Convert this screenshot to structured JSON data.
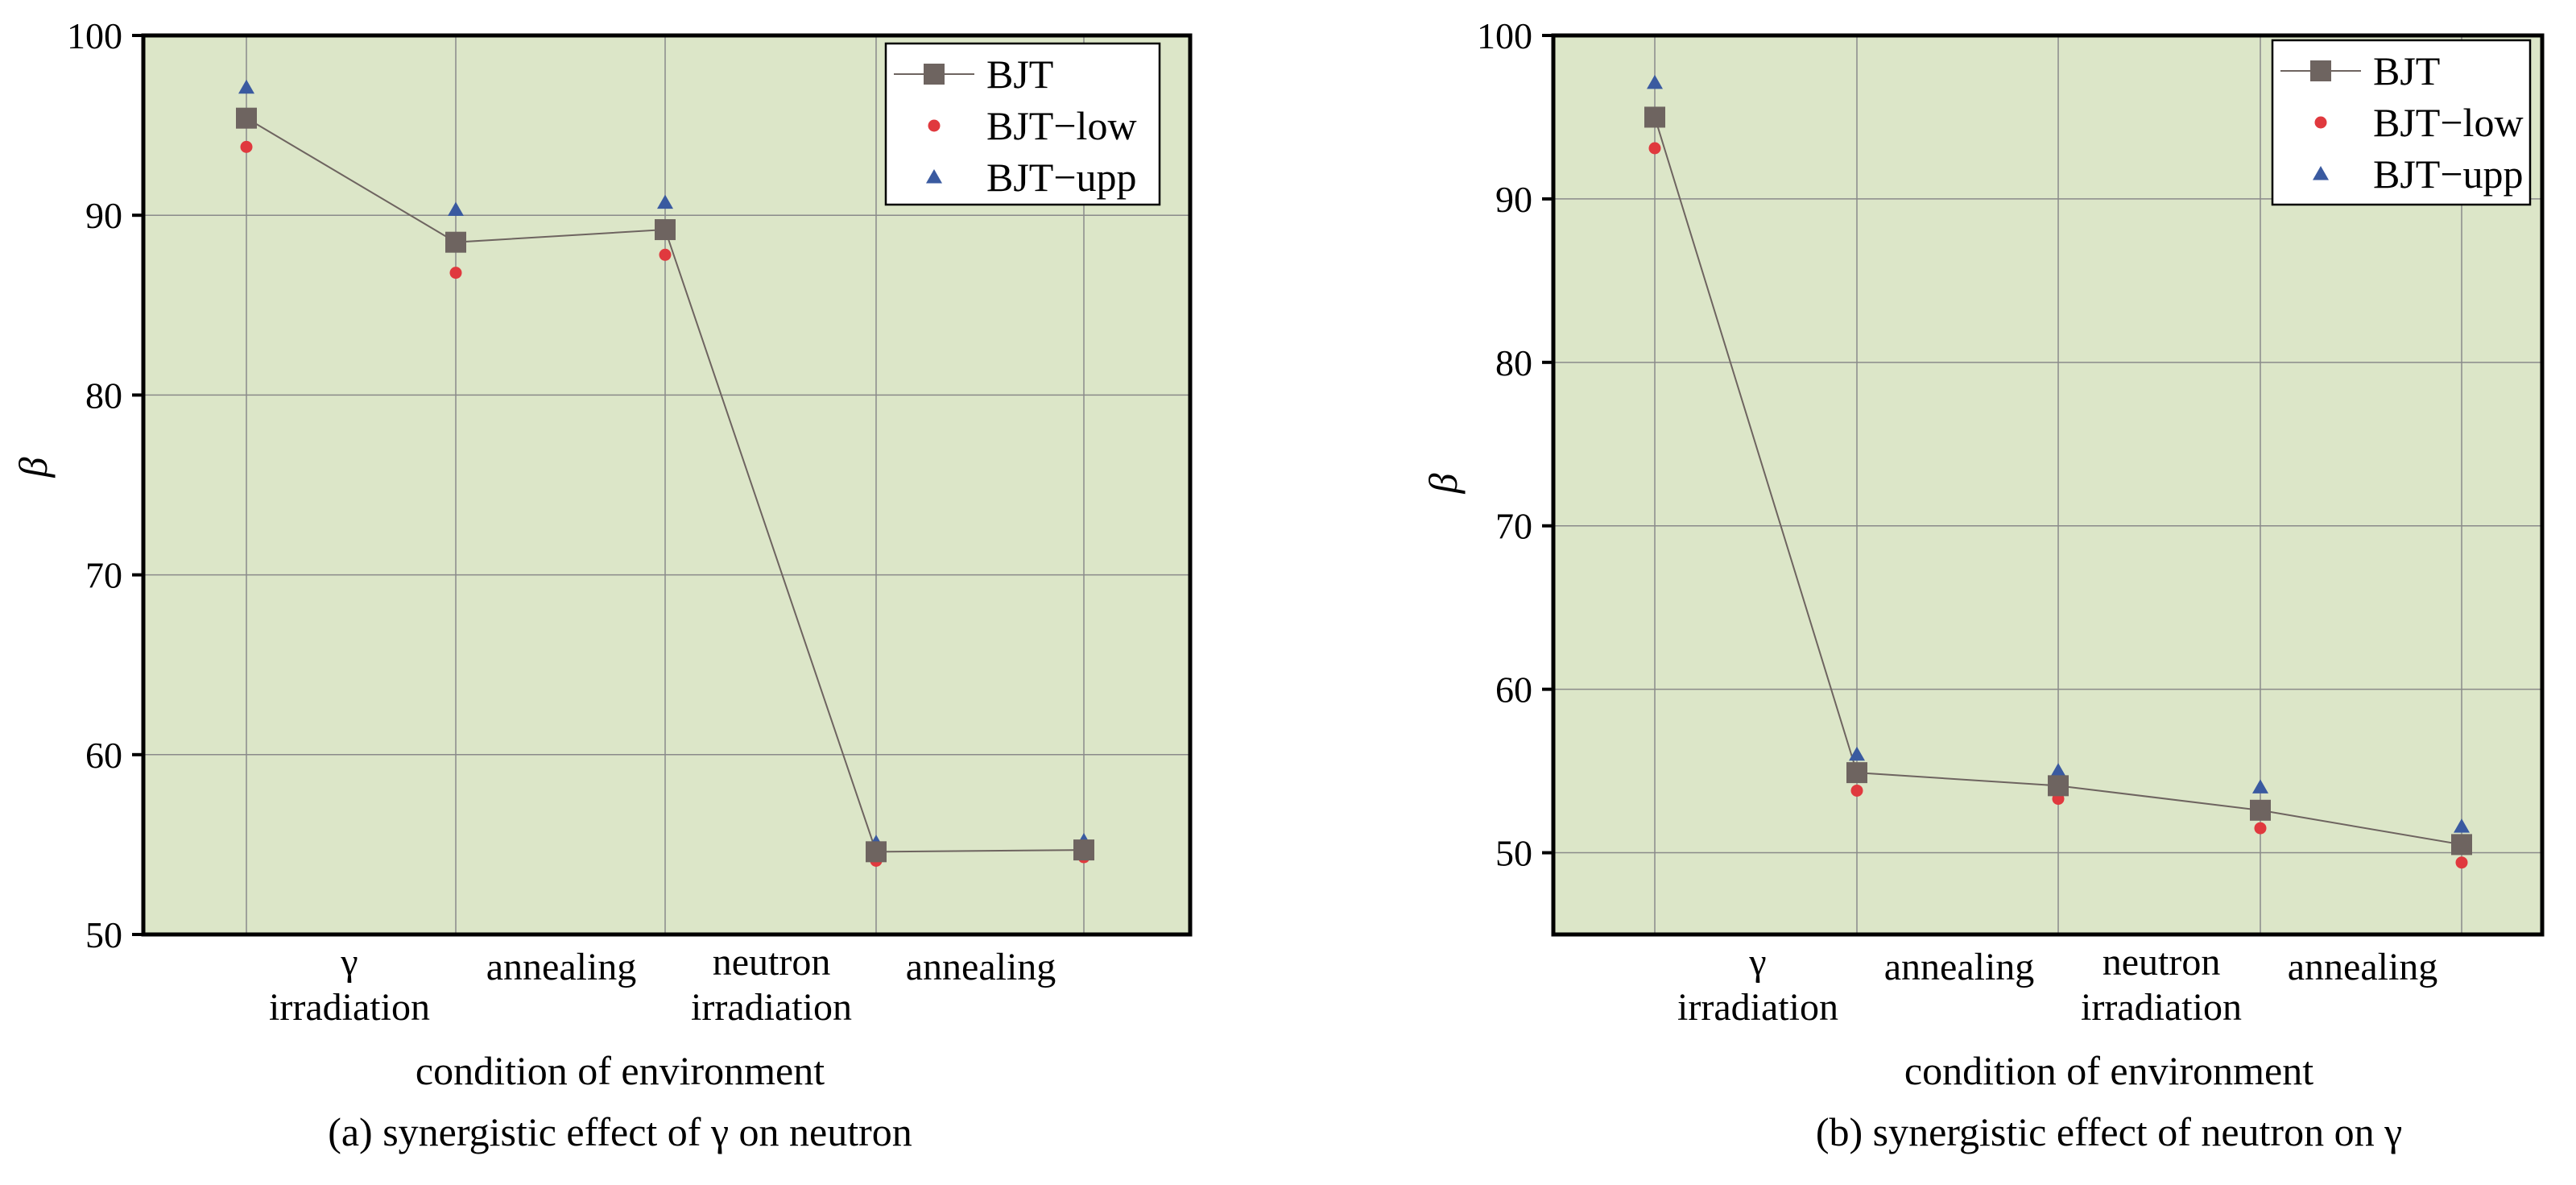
{
  "chart_data": [
    {
      "type": "line",
      "caption": "(a) synergistic effect of γ on neutron",
      "xlabel": "condition of environment",
      "ylabel": "β",
      "ylim": [
        50,
        100
      ],
      "yticks": [
        50,
        60,
        70,
        80,
        90,
        100
      ],
      "grid": true,
      "legend_position": "top-right",
      "categories": [
        [
          "γ",
          "irradiation"
        ],
        [
          "annealing"
        ],
        [
          "neutron",
          "irradiation"
        ],
        [
          "annealing"
        ]
      ],
      "x": [
        0,
        1,
        2,
        3,
        4
      ],
      "background": "#dce6c8",
      "series": [
        {
          "name": "BJT",
          "marker": "square",
          "color": "#6e6460",
          "line": true,
          "values": [
            95.4,
            88.5,
            89.2,
            54.6,
            54.7
          ]
        },
        {
          "name": "BJT−low",
          "marker": "circle",
          "color": "#e0393e",
          "line": false,
          "values": [
            93.8,
            86.8,
            87.8,
            54.1,
            54.3
          ]
        },
        {
          "name": "BJT−upp",
          "marker": "triangle",
          "color": "#3a5aa0",
          "line": false,
          "values": [
            97.1,
            90.3,
            90.7,
            55.1,
            55.2
          ]
        }
      ]
    },
    {
      "type": "line",
      "caption": "(b) synergistic effect of neutron on γ",
      "xlabel": "condition of environment",
      "ylabel": "β",
      "ylim": [
        45,
        100
      ],
      "yticks": [
        50,
        60,
        70,
        80,
        90,
        100
      ],
      "grid": true,
      "legend_position": "top-right",
      "categories": [
        [
          "γ",
          "irradiation"
        ],
        [
          "annealing"
        ],
        [
          "neutron",
          "irradiation"
        ],
        [
          "annealing"
        ]
      ],
      "x": [
        0,
        1,
        2,
        3,
        4
      ],
      "background": "#dce6c8",
      "series": [
        {
          "name": "BJT",
          "marker": "square",
          "color": "#6e6460",
          "line": true,
          "values": [
            95.0,
            54.9,
            54.1,
            52.6,
            50.5
          ]
        },
        {
          "name": "BJT−low",
          "marker": "circle",
          "color": "#e0393e",
          "line": false,
          "values": [
            93.1,
            53.8,
            53.3,
            51.5,
            49.4
          ]
        },
        {
          "name": "BJT−upp",
          "marker": "triangle",
          "color": "#3a5aa0",
          "line": false,
          "values": [
            97.1,
            56.0,
            55.0,
            54.0,
            51.6
          ]
        }
      ]
    }
  ]
}
